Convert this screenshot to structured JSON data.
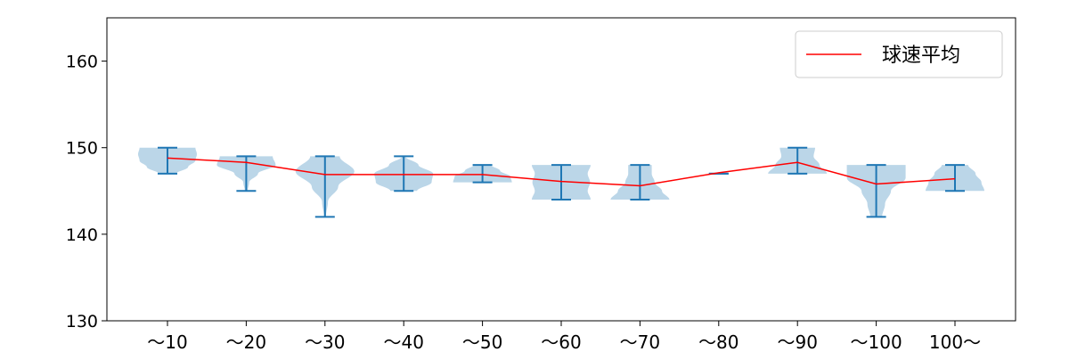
{
  "chart_data": {
    "type": "violin",
    "title": "",
    "xlabel": "",
    "ylabel": "",
    "categories": [
      "～10",
      "～20",
      "～30",
      "～40",
      "～50",
      "～60",
      "～70",
      "～80",
      "～90",
      "～100",
      "100～"
    ],
    "ylim": [
      130,
      165
    ],
    "yticks": [
      130,
      140,
      150,
      160
    ],
    "grid": false,
    "legend": {
      "placement": "top-right",
      "entries": [
        {
          "name": "球速平均",
          "color": "#ff0000"
        }
      ]
    },
    "violin_color": "#1f77b4",
    "mean_line_color": "#ff0000",
    "violins": [
      {
        "min": 147,
        "max": 150,
        "mean": 148.8,
        "density": [
          0.3,
          0.7,
          0.95,
          1.0,
          0.95
        ]
      },
      {
        "min": 145,
        "max": 149,
        "mean": 148.3,
        "density": [
          0.05,
          0.1,
          0.4,
          1.0,
          0.9
        ]
      },
      {
        "min": 142,
        "max": 149,
        "mean": 146.9,
        "density": [
          0.03,
          0.1,
          0.45,
          1.0,
          0.5
        ]
      },
      {
        "min": 145,
        "max": 149,
        "mean": 146.9,
        "density": [
          0.45,
          0.95,
          1.0,
          0.5,
          0.05
        ]
      },
      {
        "min": 146,
        "max": 148,
        "mean": 146.9,
        "density": [
          1.0,
          0.95,
          0.6,
          0.3
        ]
      },
      {
        "min": 144,
        "max": 148,
        "mean": 146.1,
        "density": [
          1.0,
          0.9,
          0.98,
          0.9,
          1.0
        ]
      },
      {
        "min": 144,
        "max": 148,
        "mean": 145.6,
        "density": [
          1.0,
          0.75,
          0.5,
          0.4,
          0.4
        ]
      },
      {
        "min": 147,
        "max": 147,
        "mean": 147.1,
        "density": []
      },
      {
        "min": 147,
        "max": 150,
        "mean": 148.3,
        "density": [
          1.0,
          0.75,
          0.55,
          0.6
        ]
      },
      {
        "min": 142,
        "max": 148,
        "mean": 145.8,
        "density": [
          0.2,
          0.3,
          0.5,
          1.0,
          1.0
        ]
      },
      {
        "min": 145,
        "max": 148,
        "mean": 146.4,
        "density": [
          1.0,
          0.9,
          0.7,
          0.45
        ]
      }
    ]
  }
}
